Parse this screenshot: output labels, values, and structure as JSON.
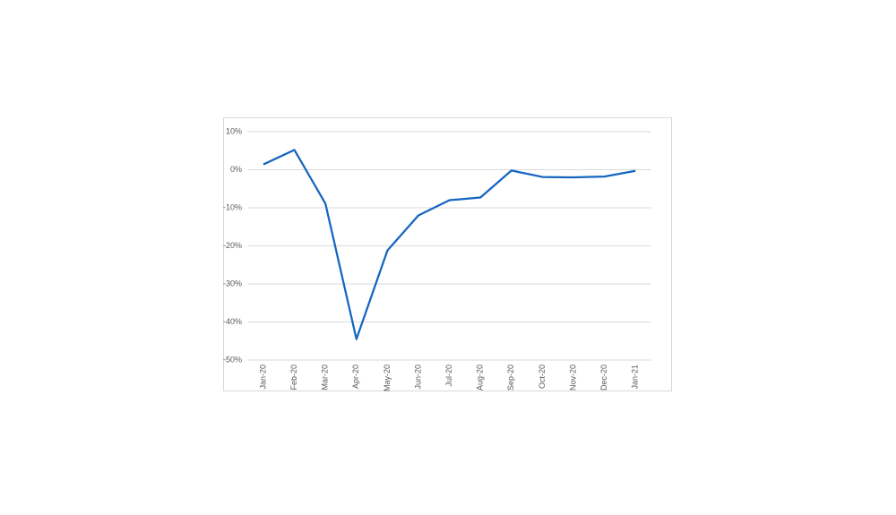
{
  "chart_data": {
    "type": "line",
    "categories": [
      "Jan-20",
      "Feb-20",
      "Mar-20",
      "Apr-20",
      "May-20",
      "Jun-20",
      "Jul-20",
      "Aug-20",
      "Sep-20",
      "Oct-20",
      "Nov-20",
      "Dec-20",
      "Jan-21"
    ],
    "values": [
      1.4,
      5.2,
      -8.9,
      -44.5,
      -21.2,
      -12.0,
      -8.0,
      -7.3,
      -0.2,
      -1.9,
      -2.0,
      -1.8,
      -0.3
    ],
    "color": "#1565c0",
    "ylim": [
      -50,
      10
    ],
    "yticks": [
      {
        "value": -50,
        "label": "-50%"
      },
      {
        "value": -40,
        "label": "-40%"
      },
      {
        "value": -30,
        "label": "-30%"
      },
      {
        "value": -20,
        "label": "-20%"
      },
      {
        "value": -10,
        "label": "-10%"
      },
      {
        "value": 0,
        "label": "0%"
      },
      {
        "value": 10,
        "label": "10%"
      }
    ],
    "grid": true
  }
}
